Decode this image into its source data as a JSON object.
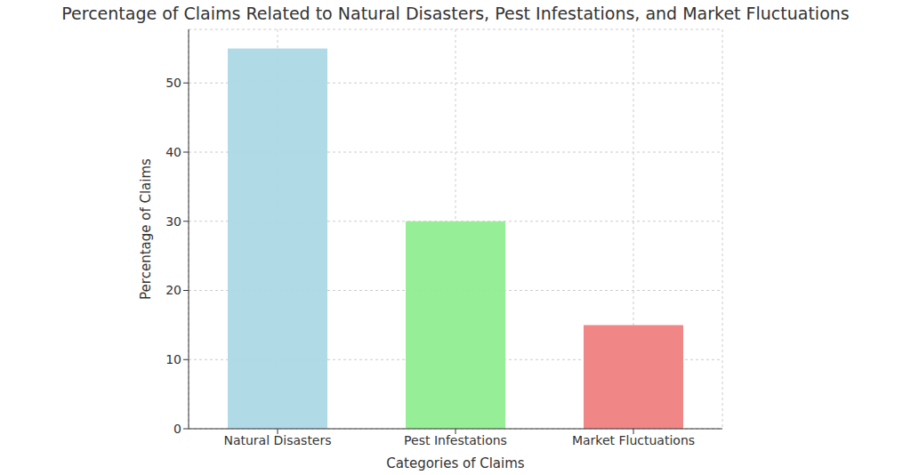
{
  "chart_data": {
    "type": "bar",
    "title": "Percentage of Claims Related to Natural Disasters, Pest Infestations, and Market Fluctuations",
    "x_label": "Categories of Claims",
    "y_label": "Percentage of Claims",
    "categories": [
      "Natural Disasters",
      "Pest Infestations",
      "Market Fluctuations"
    ],
    "values": [
      55,
      30,
      15
    ],
    "colors": [
      "#add8e6",
      "#90ee90",
      "#f08080"
    ],
    "ylim": [
      0,
      57.75
    ],
    "yticks": [
      0,
      10,
      20,
      30,
      40,
      50
    ],
    "grid": true
  }
}
